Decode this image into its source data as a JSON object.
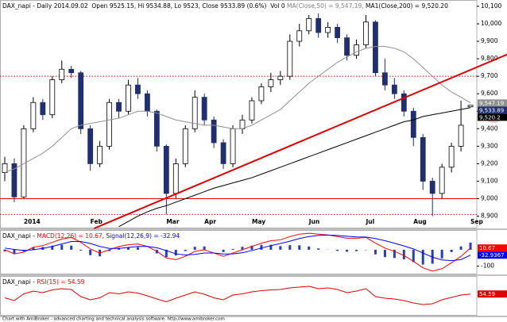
{
  "chart_data": [
    {
      "type": "candlestick",
      "header": [
        {
          "text": "DAX_napi - Daily 2014.09.02  Open 9525.15, Hi 9534.88, Lo 9523, Close 9533.89 (0.6%)  Vol 0 ",
          "color": "#000000"
        },
        {
          "text": "MA(Close,50) = 9,547.19, ",
          "color": "#808080"
        },
        {
          "text": "MA1(Close,200) = 9,520.20",
          "color": "#000000"
        }
      ],
      "categories": [
        null,
        null,
        "2014",
        null,
        null,
        null,
        null,
        null,
        null,
        "Feb",
        null,
        null,
        null,
        null,
        null,
        null,
        null,
        "Mar",
        null,
        null,
        null,
        "Apr",
        null,
        null,
        null,
        null,
        "May",
        null,
        null,
        null,
        null,
        null,
        "Jun",
        null,
        null,
        null,
        null,
        null,
        "Jul",
        null,
        null,
        null,
        null,
        "Aug",
        null,
        null,
        null,
        null,
        null,
        "Sep"
      ],
      "open": [
        9150,
        9200,
        9010,
        9400,
        9550,
        9480,
        9680,
        9740,
        9720,
        9400,
        9200,
        9300,
        9550,
        9500,
        9650,
        9600,
        9500,
        9300,
        9030,
        9200,
        9400,
        9580,
        9450,
        9320,
        9200,
        9400,
        9450,
        9560,
        9640,
        9680,
        9700,
        9900,
        9960,
        10030,
        9950,
        9980,
        9920,
        9820,
        9880,
        10010,
        9720,
        9650,
        9600,
        9500,
        9350,
        9100,
        9030,
        9180,
        9300,
        9525.15
      ],
      "high": [
        9240,
        9230,
        9420,
        9580,
        9570,
        9700,
        9790,
        9760,
        9730,
        9420,
        9330,
        9570,
        9570,
        9680,
        9690,
        9620,
        9510,
        9310,
        9230,
        9420,
        9620,
        9600,
        9470,
        9340,
        9420,
        9480,
        9580,
        9660,
        9720,
        9730,
        9940,
        10000,
        10050,
        10060,
        10010,
        10000,
        9940,
        9910,
        10050,
        10020,
        9800,
        9690,
        9620,
        9520,
        9370,
        9120,
        9200,
        9320,
        9560,
        9534.88
      ],
      "low": [
        9100,
        8980,
        9000,
        9380,
        9450,
        9460,
        9660,
        9690,
        9370,
        9160,
        9180,
        9280,
        9460,
        9480,
        9570,
        9470,
        9270,
        8910,
        9000,
        9180,
        9380,
        9420,
        9290,
        9170,
        9180,
        9370,
        9430,
        9540,
        9610,
        9650,
        9680,
        9870,
        9940,
        9920,
        9920,
        9890,
        9790,
        9800,
        9860,
        9700,
        9620,
        9570,
        9470,
        9300,
        9050,
        8900,
        9000,
        9150,
        9270,
        9523
      ],
      "close": [
        9200,
        9010,
        9400,
        9550,
        9480,
        9680,
        9740,
        9720,
        9400,
        9200,
        9300,
        9550,
        9500,
        9650,
        9600,
        9500,
        9300,
        9030,
        9200,
        9400,
        9580,
        9450,
        9320,
        9200,
        9400,
        9450,
        9560,
        9640,
        9680,
        9700,
        9900,
        9960,
        10030,
        9950,
        9980,
        9920,
        9820,
        9880,
        10010,
        9720,
        9650,
        9600,
        9500,
        9350,
        9100,
        9030,
        9180,
        9300,
        9420,
        9533.89
      ],
      "close_label": "9,533.89",
      "close_label_color": "#1f2f6f",
      "up_color": "#ffffff",
      "down_color": "#1f2f6f",
      "series": [
        {
          "color": "#909090",
          "width": 1,
          "last_label": "9,547.19",
          "values": [
            9150,
            9170,
            9200,
            9230,
            9260,
            9300,
            9350,
            9400,
            9420,
            9430,
            9440,
            9450,
            9460,
            9480,
            9500,
            9500,
            9490,
            9470,
            9450,
            9440,
            9430,
            9420,
            9420,
            9410,
            9400,
            9400,
            9420,
            9450,
            9480,
            9510,
            9560,
            9610,
            9660,
            9700,
            9740,
            9780,
            9810,
            9840,
            9860,
            9870,
            9870,
            9860,
            9840,
            9800,
            9750,
            9700,
            9650,
            9610,
            9580,
            9547.19
          ]
        },
        {
          "color": "#000000",
          "width": 1,
          "last_label": "9,520.2",
          "values": [
            null,
            null,
            null,
            null,
            null,
            null,
            null,
            null,
            null,
            null,
            null,
            null,
            8840,
            8870,
            8900,
            8925,
            8945,
            8960,
            8980,
            9000,
            9020,
            9040,
            9060,
            9075,
            9090,
            9105,
            9120,
            9140,
            9160,
            9180,
            9200,
            9220,
            9240,
            9260,
            9280,
            9300,
            9320,
            9340,
            9360,
            9380,
            9400,
            9420,
            9440,
            9450,
            9470,
            9480,
            9490,
            9500,
            9510,
            9520.2
          ]
        }
      ],
      "trendline": {
        "color": "#e00000",
        "start": [
          9.4,
          8830
        ],
        "end": [
          53,
          9828
        ]
      },
      "hlines": [
        {
          "value": 9700,
          "color": "#e00000",
          "dashed": true
        },
        {
          "value": 9000,
          "color": "#e00000",
          "dashed": false
        },
        {
          "value": 8910,
          "color": "#e00000",
          "dashed": true
        }
      ],
      "ylim": [
        8830,
        10136
      ],
      "yticks": [
        {
          "value": 10100,
          "label": "10,100"
        },
        {
          "value": 10000,
          "label": "10,000"
        },
        {
          "value": 9900,
          "label": "9,900"
        },
        {
          "value": 9800,
          "label": "9,800"
        },
        {
          "value": 9700,
          "label": "9,700"
        },
        {
          "value": 9600,
          "label": "9,600"
        },
        {
          "value": 9500,
          "label": "9,500"
        },
        {
          "value": 9400,
          "label": "9,400"
        },
        {
          "value": 9300,
          "label": "9,300"
        },
        {
          "value": 9200,
          "label": "9,200"
        },
        {
          "value": 9100,
          "label": "9,100"
        },
        {
          "value": 9000,
          "label": "9,000"
        },
        {
          "value": 8900,
          "label": "8,900"
        }
      ]
    },
    {
      "type": "line",
      "header": [
        {
          "text": "DAX_napi - ",
          "color": "#000000"
        },
        {
          "text": "MACD(12,26) = 10.67",
          "color": "#ff0000"
        },
        {
          "text": ", ",
          "color": "#000000"
        },
        {
          "text": "Signal(12,26,9) = -32.94",
          "color": "#0000ff"
        }
      ],
      "series": [
        {
          "color": "#ff0000",
          "width": 1,
          "last_label": "10.67",
          "values": [
            0,
            -25,
            -15,
            15,
            25,
            45,
            65,
            75,
            45,
            5,
            -20,
            0,
            20,
            30,
            35,
            20,
            -10,
            -50,
            -60,
            -40,
            -10,
            0,
            -20,
            -40,
            -20,
            0,
            20,
            40,
            55,
            60,
            80,
            95,
            100,
            95,
            90,
            80,
            70,
            70,
            75,
            40,
            10,
            -10,
            -35,
            -70,
            -110,
            -130,
            -115,
            -80,
            -40,
            10.67
          ]
        },
        {
          "color": "#0000ff",
          "width": 1,
          "last_label": "-32.9367",
          "values": [
            10,
            2,
            -5,
            0,
            8,
            20,
            35,
            50,
            50,
            38,
            20,
            8,
            8,
            14,
            20,
            20,
            12,
            -5,
            -25,
            -32,
            -28,
            -20,
            -20,
            -26,
            -25,
            -18,
            -5,
            10,
            25,
            38,
            52,
            68,
            80,
            87,
            89,
            87,
            82,
            78,
            77,
            68,
            55,
            40,
            23,
            5,
            -20,
            -45,
            -62,
            -66,
            -60,
            -32.9367
          ]
        }
      ],
      "bars": {
        "color": "#2040c0",
        "values": [
          -10,
          -27,
          -10,
          15,
          17,
          25,
          30,
          25,
          -5,
          -33,
          -40,
          -8,
          12,
          16,
          15,
          0,
          -22,
          -45,
          -35,
          -8,
          18,
          20,
          0,
          -14,
          5,
          18,
          25,
          30,
          30,
          22,
          28,
          27,
          20,
          8,
          1,
          -7,
          -12,
          -8,
          -2,
          -28,
          -45,
          -50,
          -58,
          -75,
          -90,
          -85,
          -53,
          -14,
          20,
          43.61
        ]
      },
      "ylim": [
        -150,
        120
      ],
      "yticks": [
        -100
      ]
    },
    {
      "type": "line",
      "header": [
        {
          "text": "DAX_napi - ",
          "color": "#000000"
        },
        {
          "text": "RSI(15) = 54.59",
          "color": "#ff0000"
        }
      ],
      "series": [
        {
          "color": "#e00000",
          "width": 1,
          "last_label": "54.59",
          "values": [
            45,
            38,
            55,
            62,
            58,
            65,
            68,
            66,
            48,
            40,
            45,
            58,
            55,
            60,
            57,
            50,
            42,
            35,
            44,
            52,
            60,
            54,
            45,
            40,
            52,
            55,
            60,
            63,
            65,
            66,
            70,
            72,
            74,
            68,
            70,
            66,
            58,
            62,
            68,
            48,
            44,
            42,
            38,
            32,
            28,
            30,
            40,
            46,
            52,
            54.59
          ]
        }
      ],
      "ylim": [
        0,
        100
      ],
      "yticks": []
    }
  ],
  "footer": "Chart with AmiBroker - advanced charting and technical analysis software. http://www.amibroker.com"
}
